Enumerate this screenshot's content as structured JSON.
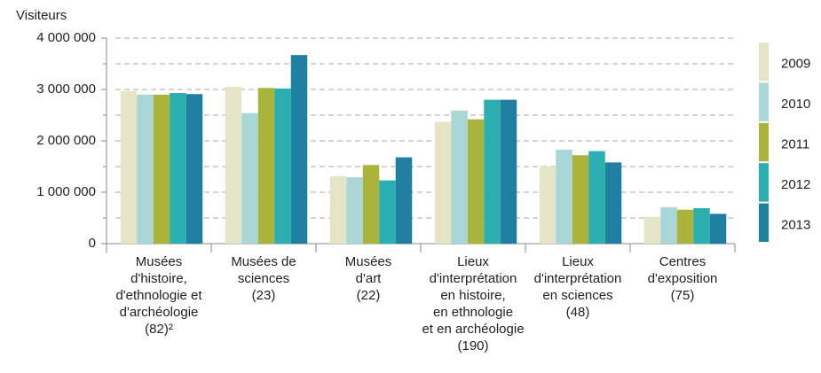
{
  "chart_data": {
    "type": "bar",
    "y_label": "Visiteurs",
    "categories": [
      "Musées\nd'histoire,\nd'ethnologie et\nd'archéologie\n(82)²",
      "Musées de\nsciences\n(23)",
      "Musées\nd'art\n(22)",
      "Lieux\nd'interprétation\nen histoire,\nen ethnologie\net en archéologie\n(190)",
      "Lieux\nd'interprétation\nen sciences\n(48)",
      "Centres\nd'exposition\n(75)"
    ],
    "series": [
      {
        "name": "2009",
        "color": "#e6e4c6",
        "values": [
          2970000,
          3050000,
          1310000,
          2370000,
          1500000,
          520000
        ]
      },
      {
        "name": "2010",
        "color": "#a9d6d6",
        "values": [
          2900000,
          2540000,
          1290000,
          2590000,
          1830000,
          710000
        ]
      },
      {
        "name": "2011",
        "color": "#aab43a",
        "values": [
          2900000,
          3030000,
          1530000,
          2420000,
          1720000,
          660000
        ]
      },
      {
        "name": "2012",
        "color": "#2aaeb0",
        "values": [
          2930000,
          3020000,
          1230000,
          2800000,
          1800000,
          690000
        ]
      },
      {
        "name": "2013",
        "color": "#1e7fa0",
        "values": [
          2910000,
          3670000,
          1680000,
          2800000,
          1580000,
          580000
        ]
      }
    ],
    "ylim": [
      0,
      4000000
    ],
    "yticks": [
      0,
      {
        "value": 1000000,
        "label": "1 000 000"
      },
      {
        "value": 2000000,
        "label": "2 000 000"
      },
      {
        "value": 3000000,
        "label": "3 000 000"
      },
      {
        "value": 4000000,
        "label": "4 000 000"
      }
    ],
    "minor_yticks": [
      500000,
      1500000,
      2500000,
      3500000
    ],
    "grid": true,
    "legend": "right"
  }
}
